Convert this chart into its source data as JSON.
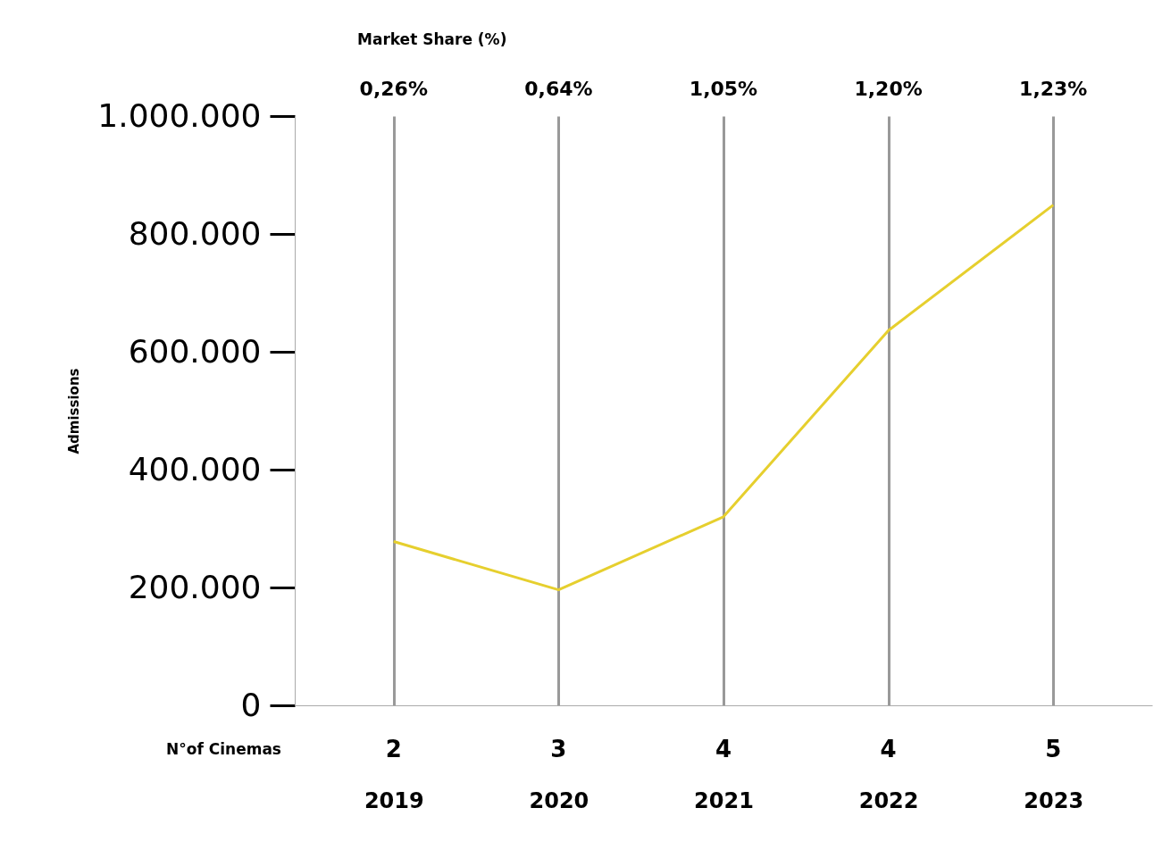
{
  "chart_data": {
    "type": "line",
    "ylabel": "Admissions",
    "categories": [
      "2019",
      "2020",
      "2021",
      "2022",
      "2023"
    ],
    "series": [
      {
        "color": "#e6cf2e",
        "values": [
          278000,
          196000,
          320000,
          636000,
          849000
        ]
      }
    ],
    "ylim": [
      0,
      1000000
    ],
    "yticks": [
      {
        "value": 0,
        "label": "0"
      },
      {
        "value": 200000,
        "label": "200.000"
      },
      {
        "value": 400000,
        "label": "400.000"
      },
      {
        "value": 600000,
        "label": "600.000"
      },
      {
        "value": 800000,
        "label": "800.000"
      },
      {
        "value": 1000000,
        "label": "1.000.000"
      }
    ],
    "grid": "x",
    "marker": "none",
    "line_style": "solid",
    "annotations": [
      "Market Share (%)",
      "0,26%",
      "0,64%",
      "1,05%",
      "1,20%",
      "1,23%",
      "N°of Cinemas",
      "2",
      "3",
      "4",
      "4",
      "5"
    ]
  }
}
